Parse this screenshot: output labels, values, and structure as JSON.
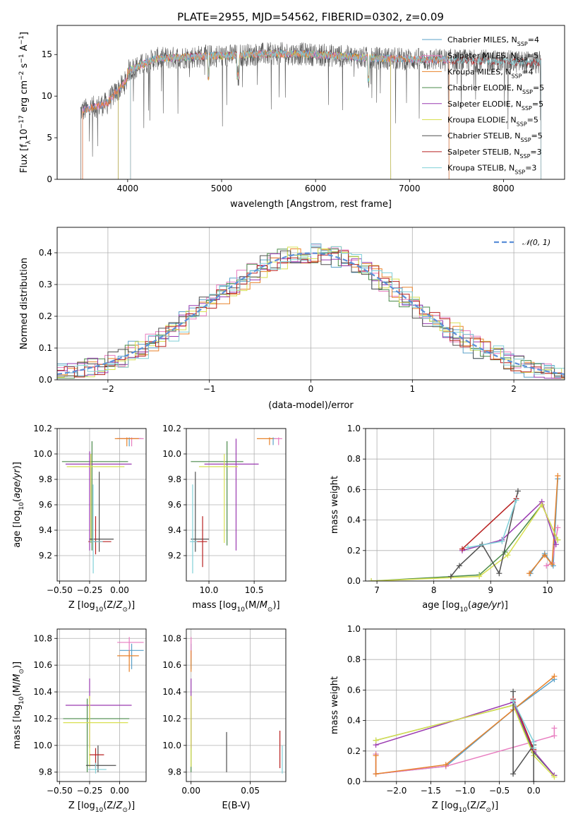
{
  "figure": {
    "title": "PLATE=2955, MJD=54562, FIBERID=0302, z=0.09"
  },
  "colors": {
    "Chabrier MILES": "#5aa0c8",
    "Salpeter MILES": "#e87dc0",
    "Kroupa MILES": "#e8822a",
    "Chabrier ELODIE": "#4a8a4a",
    "Salpeter ELODIE": "#9a3ab0",
    "Kroupa ELODIE": "#d8e050",
    "Chabrier STELIB": "#505050",
    "Salpeter STELIB": "#b82020",
    "Kroupa STELIB": "#80d0d8"
  },
  "chart_data": [
    {
      "type": "line",
      "panel": "spectrum",
      "xlabel": "wavelength [Angstrom, rest frame]",
      "ylabel": "Flux [f_λ10^-17 erg cm^-2 s^-1 A^-1]",
      "xlim": [
        3250,
        8650
      ],
      "ylim": [
        0,
        18.5
      ],
      "xticks": [
        4000,
        5000,
        6000,
        7000,
        8000
      ],
      "yticks": [
        0,
        5,
        10,
        15
      ],
      "legend": [
        {
          "name": "Chabrier MILES",
          "sup": "SSP",
          "n": 4
        },
        {
          "name": "Salpeter MILES",
          "sup": "SSP",
          "n": 5
        },
        {
          "name": "Kroupa MILES",
          "sup": "SSP",
          "n": 4
        },
        {
          "name": "Chabrier ELODIE",
          "sup": "SSP",
          "n": 5
        },
        {
          "name": "Salpeter ELODIE",
          "sup": "SSP",
          "n": 5
        },
        {
          "name": "Kroupa ELODIE",
          "sup": "SSP",
          "n": 5
        },
        {
          "name": "Chabrier STELIB",
          "sup": "SSP",
          "n": 5
        },
        {
          "name": "Salpeter STELIB",
          "sup": "SSP",
          "n": 3
        },
        {
          "name": "Kroupa STELIB",
          "sup": "SSP",
          "n": 3
        }
      ],
      "legend_position": "top-right",
      "data_range": [
        3500,
        8400
      ],
      "grid": false
    },
    {
      "type": "histogram",
      "panel": "residuals",
      "xlabel": "(data-model)/error",
      "ylabel": "Normed distribution",
      "xlim": [
        -2.5,
        2.5
      ],
      "ylim": [
        0,
        0.48
      ],
      "xticks": [
        -2,
        -1,
        0,
        1,
        2
      ],
      "yticks": [
        0.0,
        0.1,
        0.2,
        0.3,
        0.4
      ],
      "legend": [
        "N(0,1)"
      ],
      "legend_position": "top-right",
      "grid": true
    },
    {
      "type": "errorbar",
      "panel": "age_vs_Z",
      "xlabel": "Z [log10(Z/Z⊙)]",
      "ylabel": "age [log10(age/yr)]",
      "xlim": [
        -0.52,
        0.22
      ],
      "ylim": [
        9.0,
        10.2
      ],
      "xticks": [
        -0.5,
        -0.25,
        0.0
      ],
      "yticks": [
        9.2,
        9.4,
        9.6,
        9.8,
        10.0,
        10.2
      ],
      "grid": true,
      "points": [
        {
          "model": "Chabrier MILES",
          "x": 0.08,
          "xerr": [
            0.1,
            0.1
          ],
          "y": 10.12,
          "yerr": [
            0.06,
            0.01
          ]
        },
        {
          "model": "Salpeter MILES",
          "x": 0.1,
          "xerr": [
            0.12,
            0.1
          ],
          "y": 10.12,
          "yerr": [
            0.06,
            0.01
          ]
        },
        {
          "model": "Kroupa MILES",
          "x": 0.06,
          "xerr": [
            0.1,
            0.1
          ],
          "y": 10.12,
          "yerr": [
            0.06,
            0.01
          ]
        },
        {
          "model": "Chabrier ELODIE",
          "x": -0.23,
          "xerr": [
            0.25,
            0.3
          ],
          "y": 9.94,
          "yerr": [
            0.7,
            0.16
          ]
        },
        {
          "model": "Salpeter ELODIE",
          "x": -0.25,
          "xerr": [
            0.2,
            0.35
          ],
          "y": 9.92,
          "yerr": [
            0.68,
            0.1
          ]
        },
        {
          "model": "Kroupa ELODIE",
          "x": -0.24,
          "xerr": [
            0.2,
            0.28
          ],
          "y": 9.9,
          "yerr": [
            0.6,
            0.1
          ]
        },
        {
          "model": "Chabrier STELIB",
          "x": -0.17,
          "xerr": [
            0.08,
            0.12
          ],
          "y": 9.33,
          "yerr": [
            0.1,
            0.53
          ]
        },
        {
          "model": "Salpeter STELIB",
          "x": -0.2,
          "xerr": [
            0.06,
            0.13
          ],
          "y": 9.31,
          "yerr": [
            0.1,
            0.2
          ]
        },
        {
          "model": "Kroupa STELIB",
          "x": -0.22,
          "xerr": [
            0.03,
            0.08
          ],
          "y": 9.31,
          "yerr": [
            0.25,
            0.45
          ]
        }
      ]
    },
    {
      "type": "errorbar",
      "panel": "age_vs_mass",
      "xlabel": "mass [log10(M/M⊙)]",
      "ylabel": "",
      "xlim": [
        9.75,
        10.85
      ],
      "ylim": [
        9.0,
        10.2
      ],
      "xticks": [
        10.0,
        10.5
      ],
      "yticks": [
        9.2,
        9.4,
        9.6,
        9.8,
        10.0,
        10.2
      ],
      "grid": true,
      "points": [
        {
          "model": "Chabrier MILES",
          "x": 10.71,
          "xerr": [
            0.05,
            0.04
          ],
          "y": 10.12,
          "yerr": [
            0.05,
            0.01
          ]
        },
        {
          "model": "Salpeter MILES",
          "x": 10.77,
          "xerr": [
            0.05,
            0.04
          ],
          "y": 10.12,
          "yerr": [
            0.05,
            0.01
          ]
        },
        {
          "model": "Kroupa MILES",
          "x": 10.67,
          "xerr": [
            0.14,
            0.04
          ],
          "y": 10.12,
          "yerr": [
            0.05,
            0.01
          ]
        },
        {
          "model": "Chabrier ELODIE",
          "x": 10.2,
          "xerr": [
            0.4,
            0.18
          ],
          "y": 9.94,
          "yerr": [
            0.66,
            0.16
          ]
        },
        {
          "model": "Salpeter ELODIE",
          "x": 10.3,
          "xerr": [
            0.35,
            0.25
          ],
          "y": 9.92,
          "yerr": [
            0.68,
            0.2
          ]
        },
        {
          "model": "Kroupa ELODIE",
          "x": 10.17,
          "xerr": [
            0.28,
            0.15
          ],
          "y": 9.9,
          "yerr": [
            0.6,
            0.1
          ]
        },
        {
          "model": "Chabrier STELIB",
          "x": 9.85,
          "xerr": [
            0.05,
            0.15
          ],
          "y": 9.33,
          "yerr": [
            0.1,
            0.53
          ]
        },
        {
          "model": "Salpeter STELIB",
          "x": 9.93,
          "xerr": [
            0.1,
            0.05
          ],
          "y": 9.31,
          "yerr": [
            0.2,
            0.2
          ]
        },
        {
          "model": "Kroupa STELIB",
          "x": 9.82,
          "xerr": [
            0.03,
            0.05
          ],
          "y": 9.31,
          "yerr": [
            0.25,
            0.45
          ]
        }
      ]
    },
    {
      "type": "line",
      "panel": "massweight_vs_age",
      "xlabel": "age [log10(age/yr)]",
      "ylabel": "mass weight",
      "xlim": [
        6.8,
        10.3
      ],
      "ylim": [
        0,
        1.0
      ],
      "xticks": [
        7,
        8,
        9,
        10
      ],
      "yticks": [
        0.0,
        0.2,
        0.4,
        0.6,
        0.8,
        1.0
      ],
      "grid": true,
      "series": [
        {
          "model": "Chabrier MILES",
          "x": [
            9.7,
            9.95,
            10.1,
            10.18
          ],
          "y": [
            0.05,
            0.18,
            0.1,
            0.67
          ]
        },
        {
          "model": "Salpeter MILES",
          "x": [
            9.98,
            10.08,
            10.18
          ],
          "y": [
            0.1,
            0.12,
            0.35
          ]
        },
        {
          "model": "Kroupa MILES",
          "x": [
            9.68,
            9.95,
            10.08,
            10.18
          ],
          "y": [
            0.05,
            0.17,
            0.11,
            0.69
          ]
        },
        {
          "model": "Chabrier ELODIE",
          "x": [
            6.9,
            8.8,
            9.25,
            9.9,
            10.18
          ],
          "y": [
            0.0,
            0.04,
            0.19,
            0.5,
            0.27
          ]
        },
        {
          "model": "Salpeter ELODIE",
          "x": [
            8.5,
            9.2,
            9.9,
            10.15
          ],
          "y": [
            0.2,
            0.27,
            0.52,
            0.24
          ]
        },
        {
          "model": "Kroupa ELODIE",
          "x": [
            6.9,
            8.8,
            9.3,
            9.9,
            10.18
          ],
          "y": [
            0.0,
            0.03,
            0.17,
            0.5,
            0.27
          ]
        },
        {
          "model": "Chabrier STELIB",
          "x": [
            8.3,
            8.45,
            8.85,
            9.15,
            9.48
          ],
          "y": [
            0.03,
            0.1,
            0.24,
            0.05,
            0.59
          ]
        },
        {
          "model": "Salpeter STELIB",
          "x": [
            8.5,
            9.45
          ],
          "y": [
            0.21,
            0.54
          ]
        },
        {
          "model": "Kroupa STELIB",
          "x": [
            8.6,
            9.2,
            9.45
          ],
          "y": [
            0.22,
            0.26,
            0.53
          ]
        }
      ]
    },
    {
      "type": "errorbar",
      "panel": "mass_vs_Z",
      "xlabel": "Z [log10(Z/Z⊙)]",
      "ylabel": "mass [log10(M/M⊙)]",
      "xlim": [
        -0.52,
        0.22
      ],
      "ylim": [
        9.73,
        10.87
      ],
      "xticks": [
        -0.5,
        -0.25,
        0.0
      ],
      "yticks": [
        9.8,
        10.0,
        10.2,
        10.4,
        10.6,
        10.8
      ],
      "grid": true,
      "points": [
        {
          "model": "Chabrier MILES",
          "x": 0.1,
          "xerr": [
            0.1,
            0.1
          ],
          "y": 10.71,
          "yerr": [
            0.14,
            0.05
          ]
        },
        {
          "model": "Salpeter MILES",
          "x": 0.08,
          "xerr": [
            0.1,
            0.12
          ],
          "y": 10.77,
          "yerr": [
            0.12,
            0.04
          ]
        },
        {
          "model": "Kroupa MILES",
          "x": 0.08,
          "xerr": [
            0.1,
            0.08
          ],
          "y": 10.67,
          "yerr": [
            0.12,
            0.04
          ]
        },
        {
          "model": "Chabrier ELODIE",
          "x": -0.27,
          "xerr": [
            0.2,
            0.35
          ],
          "y": 10.2,
          "yerr": [
            0.4,
            0.15
          ]
        },
        {
          "model": "Salpeter ELODIE",
          "x": -0.25,
          "xerr": [
            0.2,
            0.35
          ],
          "y": 10.3,
          "yerr": [
            0.32,
            0.2
          ]
        },
        {
          "model": "Kroupa ELODIE",
          "x": -0.25,
          "xerr": [
            0.22,
            0.32
          ],
          "y": 10.17,
          "yerr": [
            0.33,
            0.2
          ]
        },
        {
          "model": "Chabrier STELIB",
          "x": -0.18,
          "xerr": [
            0.1,
            0.15
          ],
          "y": 9.85,
          "yerr": [
            0.05,
            0.15
          ]
        },
        {
          "model": "Salpeter STELIB",
          "x": -0.2,
          "xerr": [
            0.05,
            0.07
          ],
          "y": 9.93,
          "yerr": [
            0.1,
            0.05
          ]
        },
        {
          "model": "Kroupa STELIB",
          "x": -0.2,
          "xerr": [
            0.06,
            0.09
          ],
          "y": 9.82,
          "yerr": [
            0.03,
            0.05
          ]
        }
      ]
    },
    {
      "type": "errorbar",
      "panel": "mass_vs_EBV",
      "xlabel": "E(B-V)",
      "ylabel": "",
      "xlim": [
        -0.004,
        0.08
      ],
      "ylim": [
        9.73,
        10.87
      ],
      "xticks": [
        0.0,
        0.05
      ],
      "yticks": [
        9.8,
        10.0,
        10.2,
        10.4,
        10.6,
        10.8
      ],
      "grid": true,
      "points": [
        {
          "model": "Chabrier MILES",
          "x": 0.0,
          "y": 10.71,
          "yerr": [
            0.14,
            0.05
          ]
        },
        {
          "model": "Salpeter MILES",
          "x": 0.0,
          "y": 10.77,
          "yerr": [
            0.12,
            0.04
          ]
        },
        {
          "model": "Kroupa MILES",
          "x": 0.0,
          "y": 10.67,
          "yerr": [
            0.12,
            0.04
          ]
        },
        {
          "model": "Chabrier ELODIE",
          "x": 0.0,
          "y": 10.2,
          "yerr": [
            0.4,
            0.15
          ]
        },
        {
          "model": "Salpeter ELODIE",
          "x": 0.0,
          "y": 10.3,
          "yerr": [
            0.32,
            0.2
          ]
        },
        {
          "model": "Kroupa ELODIE",
          "x": 0.0,
          "y": 10.17,
          "yerr": [
            0.33,
            0.2
          ]
        },
        {
          "model": "Chabrier STELIB",
          "x": 0.03,
          "y": 9.85,
          "yerr": [
            0.05,
            0.25
          ]
        },
        {
          "model": "Salpeter STELIB",
          "x": 0.075,
          "y": 9.93,
          "yerr": [
            0.1,
            0.18
          ]
        },
        {
          "model": "Kroupa STELIB",
          "x": 0.077,
          "y": 9.82,
          "yerr": [
            0.03,
            0.18
          ]
        }
      ]
    },
    {
      "type": "line",
      "panel": "massweight_vs_Z",
      "xlabel": "Z [log10(Z/Z⊙)]",
      "ylabel": "mass weight",
      "xlim": [
        -2.45,
        0.45
      ],
      "ylim": [
        0,
        1.0
      ],
      "xticks": [
        -2.0,
        -1.5,
        -1.0,
        -0.5,
        0.0
      ],
      "yticks": [
        0.0,
        0.2,
        0.4,
        0.6,
        0.8,
        1.0
      ],
      "grid": true,
      "series": [
        {
          "model": "Chabrier MILES",
          "x": [
            -2.3,
            -2.3,
            -1.28,
            -0.3,
            0.3
          ],
          "y": [
            0.18,
            0.05,
            0.1,
            0.47,
            0.67
          ]
        },
        {
          "model": "Salpeter MILES",
          "x": [
            -2.3,
            -2.3,
            -1.28,
            0.3,
            0.3
          ],
          "y": [
            0.18,
            0.05,
            0.1,
            0.3,
            0.35
          ]
        },
        {
          "model": "Kroupa MILES",
          "x": [
            -2.3,
            -2.3,
            -1.28,
            -0.3,
            0.3
          ],
          "y": [
            0.17,
            0.05,
            0.11,
            0.47,
            0.69
          ]
        },
        {
          "model": "Chabrier ELODIE",
          "x": [
            -2.3,
            -0.3,
            0.0,
            0.3
          ],
          "y": [
            0.27,
            0.5,
            0.19,
            0.04
          ]
        },
        {
          "model": "Salpeter ELODIE",
          "x": [
            -2.3,
            -0.3,
            0.0,
            0.3
          ],
          "y": [
            0.24,
            0.52,
            0.2,
            0.04
          ]
        },
        {
          "model": "Kroupa ELODIE",
          "x": [
            -2.3,
            -0.3,
            0.0,
            0.3
          ],
          "y": [
            0.27,
            0.5,
            0.17,
            0.03
          ]
        },
        {
          "model": "Chabrier STELIB",
          "x": [
            -0.3,
            -0.3,
            0.0,
            0.0
          ],
          "y": [
            0.59,
            0.05,
            0.24,
            0.0
          ]
        },
        {
          "model": "Salpeter STELIB",
          "x": [
            -0.3,
            0.0
          ],
          "y": [
            0.54,
            0.21
          ]
        },
        {
          "model": "Kroupa STELIB",
          "x": [
            -0.3,
            0.0,
            0.0
          ],
          "y": [
            0.53,
            0.26,
            0.22
          ]
        }
      ]
    }
  ]
}
